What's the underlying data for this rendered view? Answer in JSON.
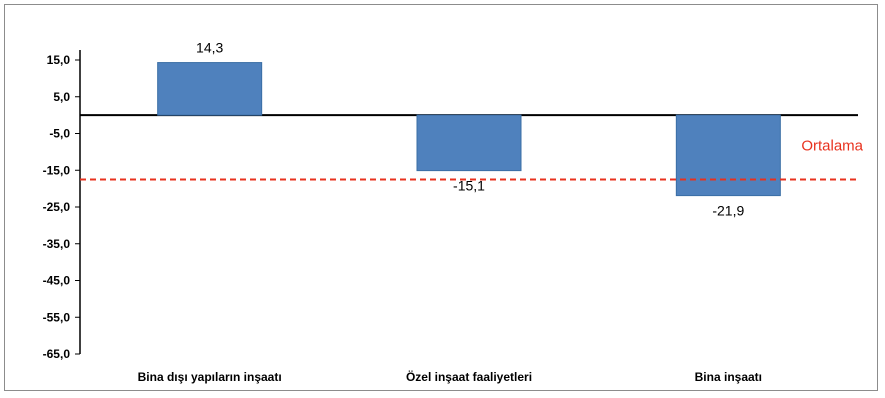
{
  "chart_data": {
    "type": "bar",
    "categories": [
      "Bina dışı yapıların inşaatı",
      "Özel inşaat faaliyetleri",
      "Bina inşaatı"
    ],
    "values": [
      14.3,
      -15.1,
      -21.9
    ],
    "data_labels": [
      "14,3",
      "-15,1",
      "-21,9"
    ],
    "ylim": [
      -65,
      20
    ],
    "yticks": [
      15,
      5,
      -5,
      -15,
      -25,
      -35,
      -45,
      -55,
      -65
    ],
    "ytick_labels": [
      "15,0",
      "5,0",
      "-5,0",
      "-15,0",
      "-25,0",
      "-35,0",
      "-45,0",
      "-55,0",
      "-65,0"
    ],
    "average": {
      "label": "Ortalama",
      "value": -17.5
    },
    "title": "",
    "xlabel": "",
    "ylabel": "",
    "grid": false,
    "legend": "none",
    "colors": {
      "bar": "#4f81bd",
      "bar_edge": "#3a6ea5",
      "average_line": "#e8321e",
      "axis": "#000000",
      "frame": "#8c8c8c"
    }
  }
}
